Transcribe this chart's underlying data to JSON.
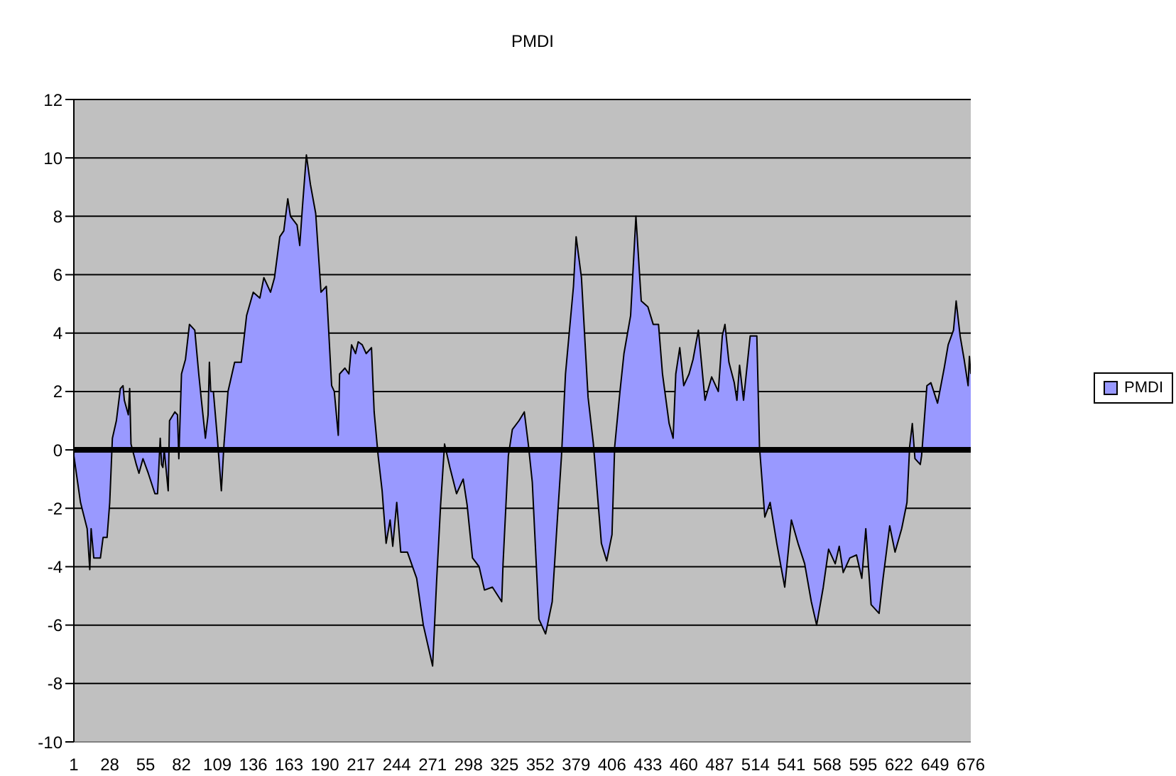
{
  "chart_data": {
    "type": "area",
    "title": "PMDI",
    "legend": "right",
    "grid": "y",
    "xlim": [
      1,
      676
    ],
    "xticks": [
      1,
      28,
      55,
      82,
      109,
      136,
      163,
      190,
      217,
      244,
      271,
      298,
      325,
      352,
      379,
      406,
      433,
      460,
      487,
      514,
      541,
      568,
      595,
      622,
      649,
      676
    ],
    "ylim": [
      -10,
      12
    ],
    "yticks": [
      -10,
      -8,
      -6,
      -4,
      -2,
      0,
      2,
      4,
      6,
      8,
      10,
      12
    ],
    "x": [
      1,
      6,
      11,
      13,
      14,
      16,
      21,
      23,
      26,
      28,
      30,
      33,
      36,
      38,
      39,
      42,
      43,
      44,
      48,
      50,
      53,
      57,
      62,
      64,
      66,
      67,
      68,
      69,
      72,
      73,
      77,
      79,
      80,
      82,
      85,
      88,
      92,
      95,
      97,
      100,
      102,
      103,
      104,
      106,
      109,
      112,
      114,
      117,
      122,
      127,
      131,
      136,
      141,
      144,
      149,
      152,
      156,
      159,
      162,
      164,
      169,
      171,
      173,
      176,
      179,
      183,
      187,
      191,
      195,
      197,
      200,
      201,
      205,
      208,
      210,
      213,
      215,
      218,
      221,
      225,
      227,
      230,
      233,
      236,
      239,
      241,
      244,
      247,
      252,
      259,
      264,
      269,
      271,
      274,
      277,
      280,
      284,
      289,
      294,
      297,
      301,
      306,
      310,
      316,
      323,
      324,
      328,
      331,
      336,
      340,
      343,
      346,
      351,
      356,
      361,
      365,
      368,
      371,
      377,
      379,
      383,
      388,
      392,
      398,
      402,
      406,
      408,
      412,
      415,
      420,
      424,
      428,
      433,
      437,
      441,
      444,
      449,
      452,
      454,
      457,
      460,
      464,
      467,
      471,
      476,
      481,
      486,
      489,
      491,
      494,
      498,
      500,
      502,
      505,
      510,
      515,
      517,
      521,
      525,
      530,
      536,
      541,
      546,
      551,
      556,
      560,
      565,
      569,
      574,
      577,
      580,
      585,
      590,
      594,
      597,
      601,
      607,
      610,
      615,
      619,
      624,
      628,
      630,
      632,
      634,
      638,
      639,
      643,
      646,
      651,
      656,
      659,
      663,
      665,
      668,
      671,
      674,
      675,
      676
    ],
    "series": [
      {
        "name": "PMDI",
        "color": "#9999ff",
        "values": [
          -0.2,
          -1.8,
          -2.7,
          -4.1,
          -2.7,
          -3.7,
          -3.7,
          -3,
          -3,
          -1.8,
          0.4,
          1,
          2.1,
          2.2,
          1.7,
          1.2,
          2.1,
          0.2,
          -0.5,
          -0.8,
          -0.3,
          -0.8,
          -1.5,
          -1.5,
          0.4,
          -0.5,
          -0.6,
          0,
          -1.4,
          1,
          1.3,
          1.2,
          -0.3,
          2.6,
          3.1,
          4.3,
          4.1,
          2.6,
          1.7,
          0.4,
          1.2,
          3,
          2,
          2,
          0.4,
          -1.4,
          0.2,
          2,
          3,
          3,
          4.6,
          5.4,
          5.2,
          5.9,
          5.4,
          5.9,
          7.3,
          7.5,
          8.6,
          8,
          7.7,
          7,
          8.3,
          10.1,
          9.1,
          8.1,
          5.4,
          5.6,
          2.2,
          2,
          0.5,
          2.6,
          2.8,
          2.6,
          3.6,
          3.3,
          3.7,
          3.6,
          3.3,
          3.5,
          1.3,
          -0.2,
          -1.4,
          -3.2,
          -2.4,
          -3.3,
          -1.8,
          -3.5,
          -3.5,
          -4.4,
          -6,
          -7,
          -7.4,
          -4.5,
          -1.9,
          0.2,
          -0.6,
          -1.5,
          -1,
          -1.9,
          -3.7,
          -4,
          -4.8,
          -4.7,
          -5.2,
          -3.9,
          -0.2,
          0.7,
          1,
          1.3,
          0.2,
          -1.1,
          -5.8,
          -6.3,
          -5.2,
          -2.3,
          -0.2,
          2.6,
          5.6,
          7.3,
          5.9,
          1.8,
          0.2,
          -3.2,
          -3.8,
          -2.9,
          0.1,
          2,
          3.3,
          4.6,
          8,
          5.1,
          4.9,
          4.3,
          4.3,
          2.6,
          0.9,
          0.4,
          2.6,
          3.5,
          2.2,
          2.6,
          3.1,
          4.1,
          1.7,
          2.5,
          2,
          3.9,
          4.3,
          3,
          2.3,
          1.7,
          2.9,
          1.7,
          3.9,
          3.9,
          0.1,
          -2.3,
          -1.8,
          -3.2,
          -4.7,
          -2.4,
          -3.2,
          -3.9,
          -5.2,
          -6,
          -4.7,
          -3.4,
          -3.9,
          -3.3,
          -4.2,
          -3.7,
          -3.6,
          -4.4,
          -2.7,
          -5.3,
          -5.6,
          -4.4,
          -2.6,
          -3.5,
          -2.7,
          -1.8,
          0.1,
          0.9,
          -0.3,
          -0.5,
          -0.2,
          2.2,
          2.3,
          1.6,
          2.8,
          3.6,
          4.1,
          5.1,
          3.9,
          3.1,
          2.2,
          3.2,
          2.6
        ]
      }
    ]
  }
}
